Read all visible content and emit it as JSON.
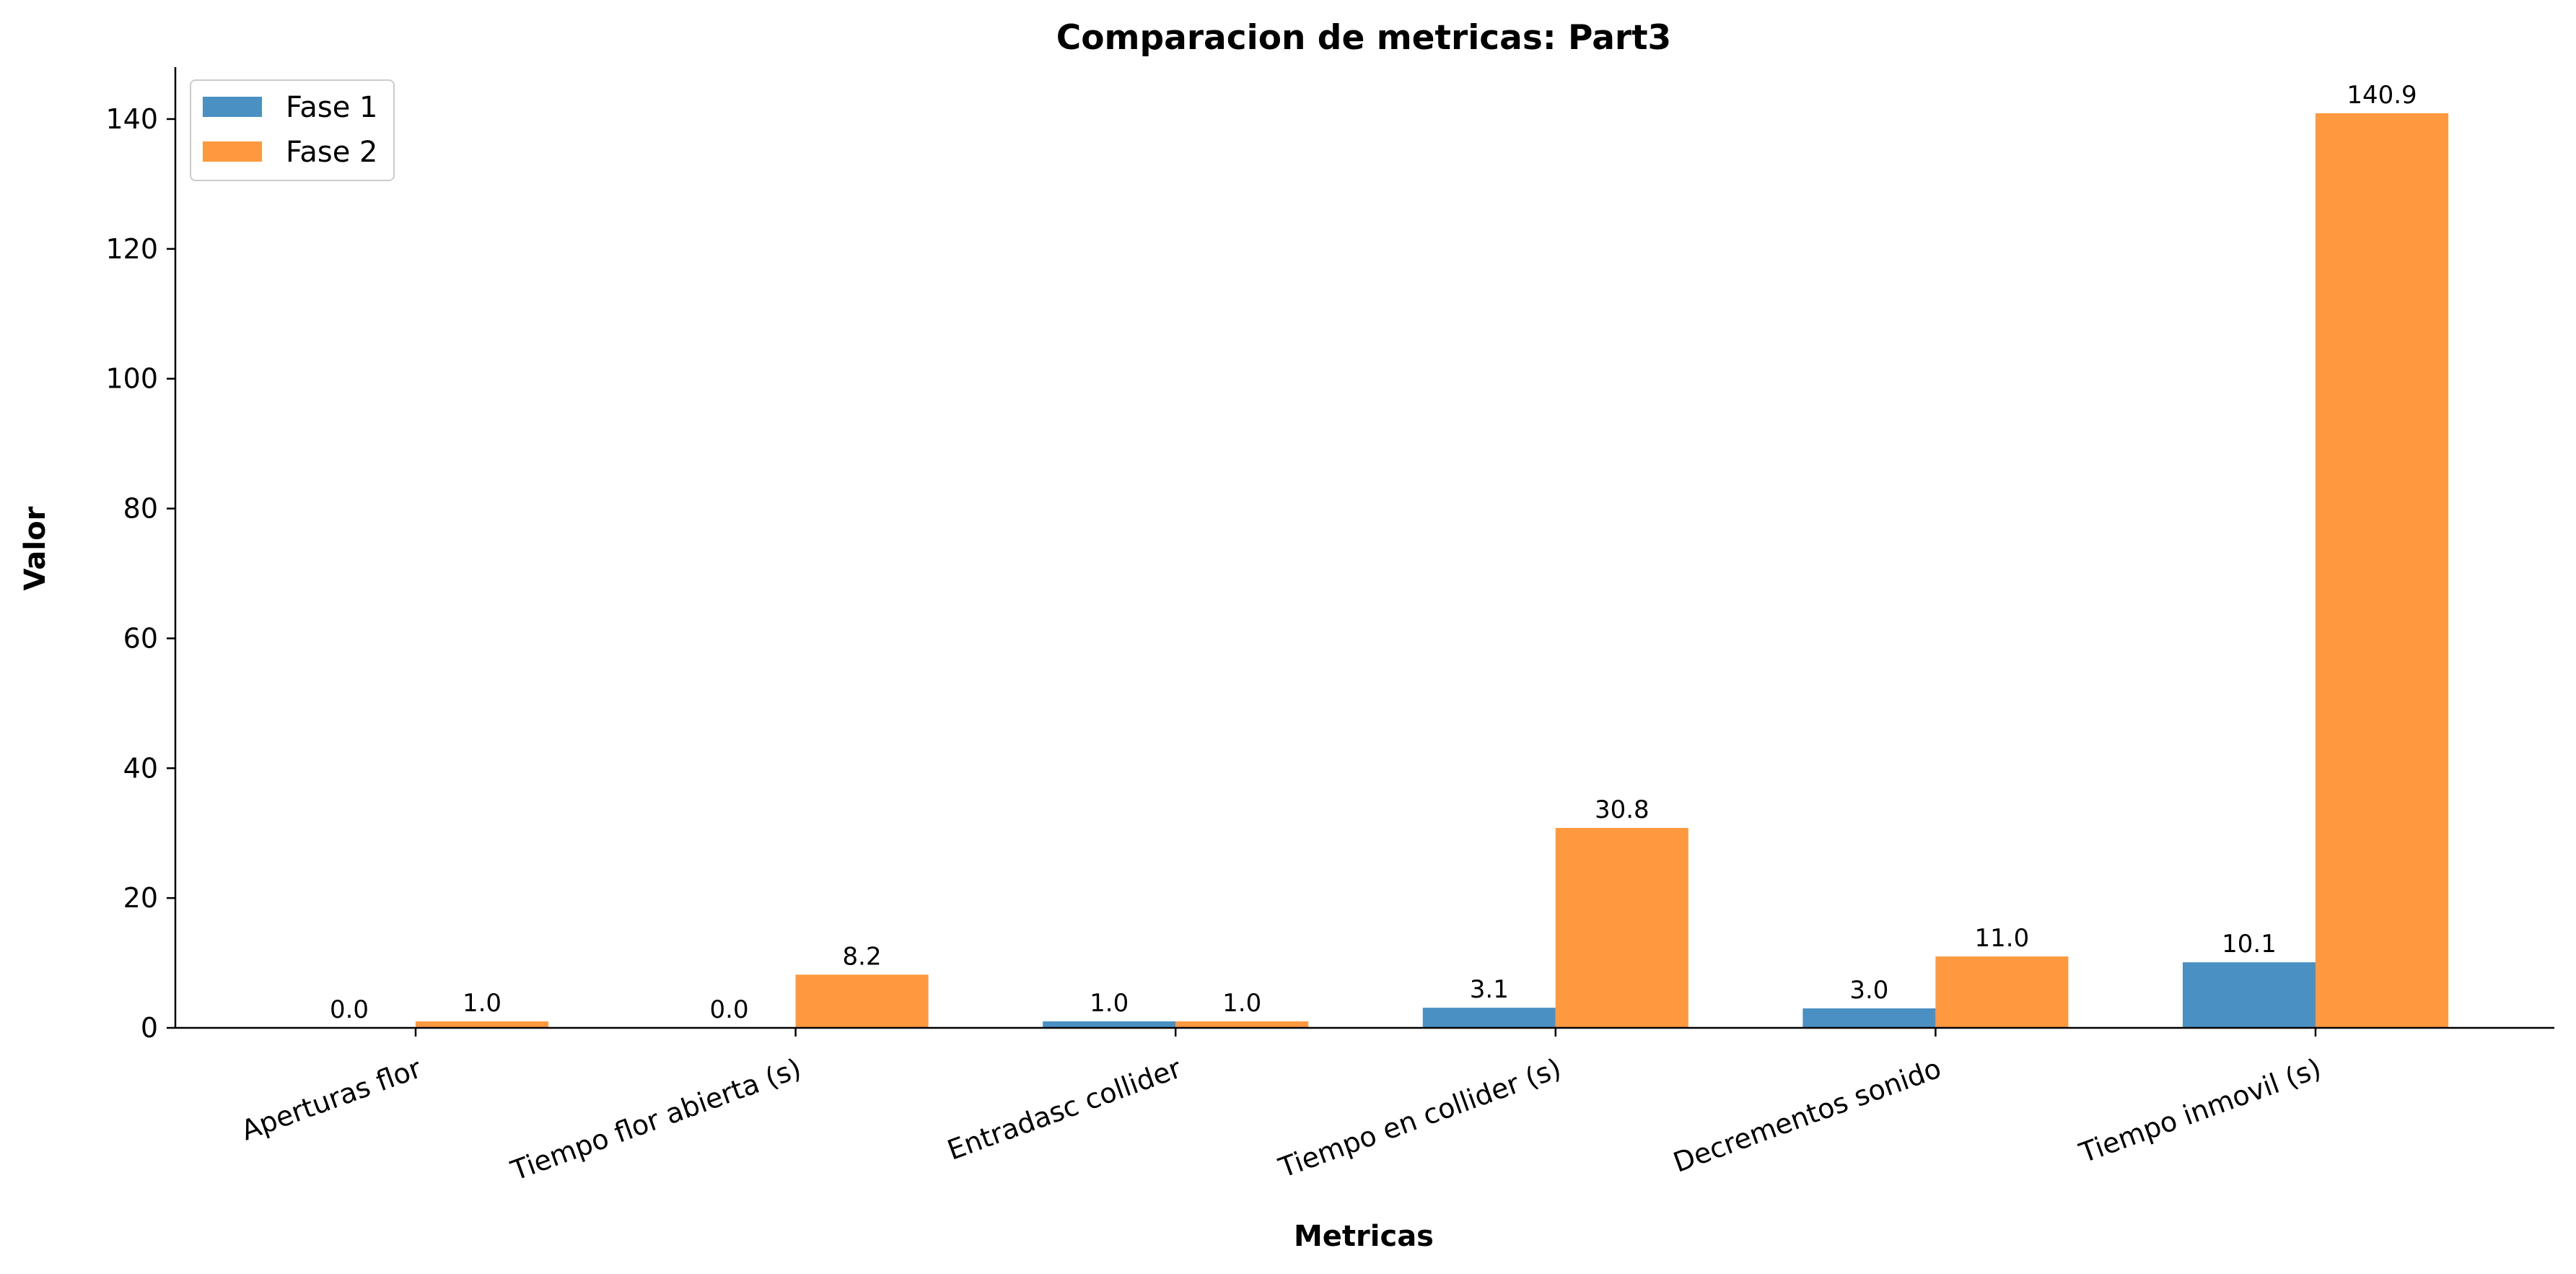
{
  "chart_data": {
    "type": "bar",
    "title": "Comparacion de metricas: Part3",
    "xlabel": "Metricas",
    "ylabel": "Valor",
    "categories": [
      "Aperturas flor",
      "Tiempo flor abierta (s)",
      "Entradasc collider",
      "Tiempo en collider (s)",
      "Decrementos sonido",
      "Tiempo inmovil (s)"
    ],
    "series": [
      {
        "name": "Fase 1",
        "color": "#4a90c2",
        "values": [
          0.0,
          0.0,
          1.0,
          3.1,
          3.0,
          10.1
        ],
        "labels": [
          "0.0",
          "0.0",
          "1.0",
          "3.1",
          "3.0",
          "10.1"
        ]
      },
      {
        "name": "Fase 2",
        "color": "#ff993f",
        "values": [
          1.0,
          8.2,
          1.0,
          30.8,
          11.0,
          140.9
        ],
        "labels": [
          "1.0",
          "8.2",
          "1.0",
          "30.8",
          "11.0",
          "140.9"
        ]
      }
    ],
    "ylim": [
      0,
      148
    ],
    "yticks": [
      0,
      20,
      40,
      60,
      80,
      100,
      120,
      140
    ],
    "grid": false,
    "legend_position": "top-left"
  }
}
